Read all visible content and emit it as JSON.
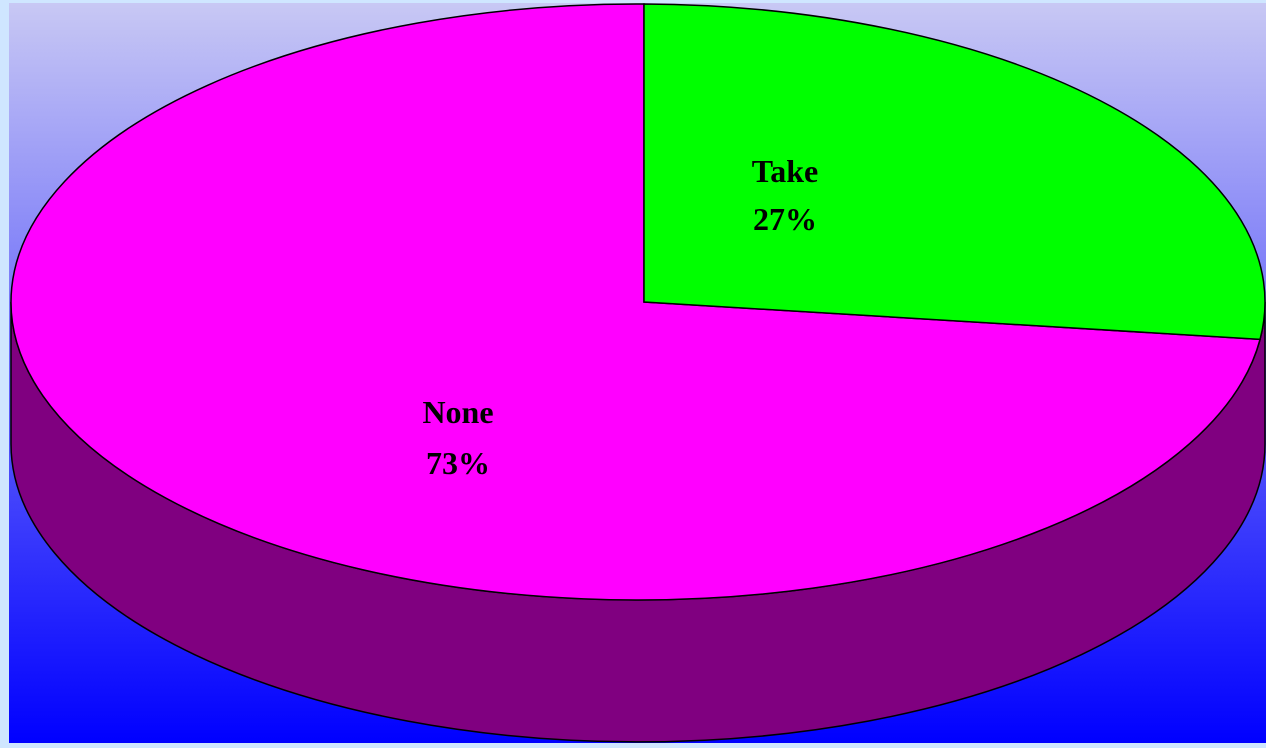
{
  "chart_data": {
    "type": "pie",
    "title": "",
    "categories": [
      "Take",
      "None"
    ],
    "values": [
      27,
      73
    ],
    "labels": [
      {
        "name": "Take",
        "percent": "27%"
      },
      {
        "name": "None",
        "percent": "73%"
      }
    ],
    "three_d": true,
    "start_angle": "12 o'clock",
    "direction": "clockwise",
    "legend": "none",
    "colors": {
      "Take": "#00ff00",
      "None": "#ff00ff",
      "side": "#800080",
      "outline": "#000000",
      "background_top": "#c8c8f4",
      "background_bottom": "#0000ff",
      "frame": "#cfe6ff"
    }
  }
}
